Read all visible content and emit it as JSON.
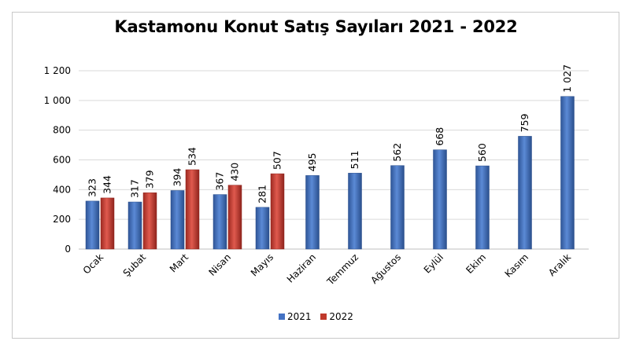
{
  "chart_data": {
    "type": "bar",
    "title": "Kastamonu Konut Satış Sayıları 2021 - 2022",
    "categories": [
      "Ocak",
      "Şubat",
      "Mart",
      "Nisan",
      "Mayıs",
      "Haziran",
      "Temmuz",
      "Ağustos",
      "Eylül",
      "Ekim",
      "Kasım",
      "Aralık"
    ],
    "series": [
      {
        "name": "2021",
        "color": "#4472c4",
        "values": [
          323,
          317,
          394,
          367,
          281,
          495,
          511,
          562,
          668,
          560,
          759,
          1027
        ],
        "labels": [
          "323",
          "317",
          "394",
          "367",
          "281",
          "495",
          "511",
          "562",
          "668",
          "560",
          "759",
          "1 027"
        ]
      },
      {
        "name": "2022",
        "color": "#c0392b",
        "values": [
          344,
          379,
          534,
          430,
          507,
          null,
          null,
          null,
          null,
          null,
          null,
          null
        ],
        "labels": [
          "344",
          "379",
          "534",
          "430",
          "507",
          "",
          "",
          "",
          "",
          "",
          "",
          ""
        ]
      }
    ],
    "ylim": [
      0,
      1200
    ],
    "yticks": [
      0,
      200,
      400,
      600,
      800,
      1000,
      1200
    ],
    "ytick_labels": [
      "0",
      "200",
      "400",
      "600",
      "800",
      "1 000",
      "1 200"
    ],
    "grid": true,
    "legend": "bottom"
  }
}
